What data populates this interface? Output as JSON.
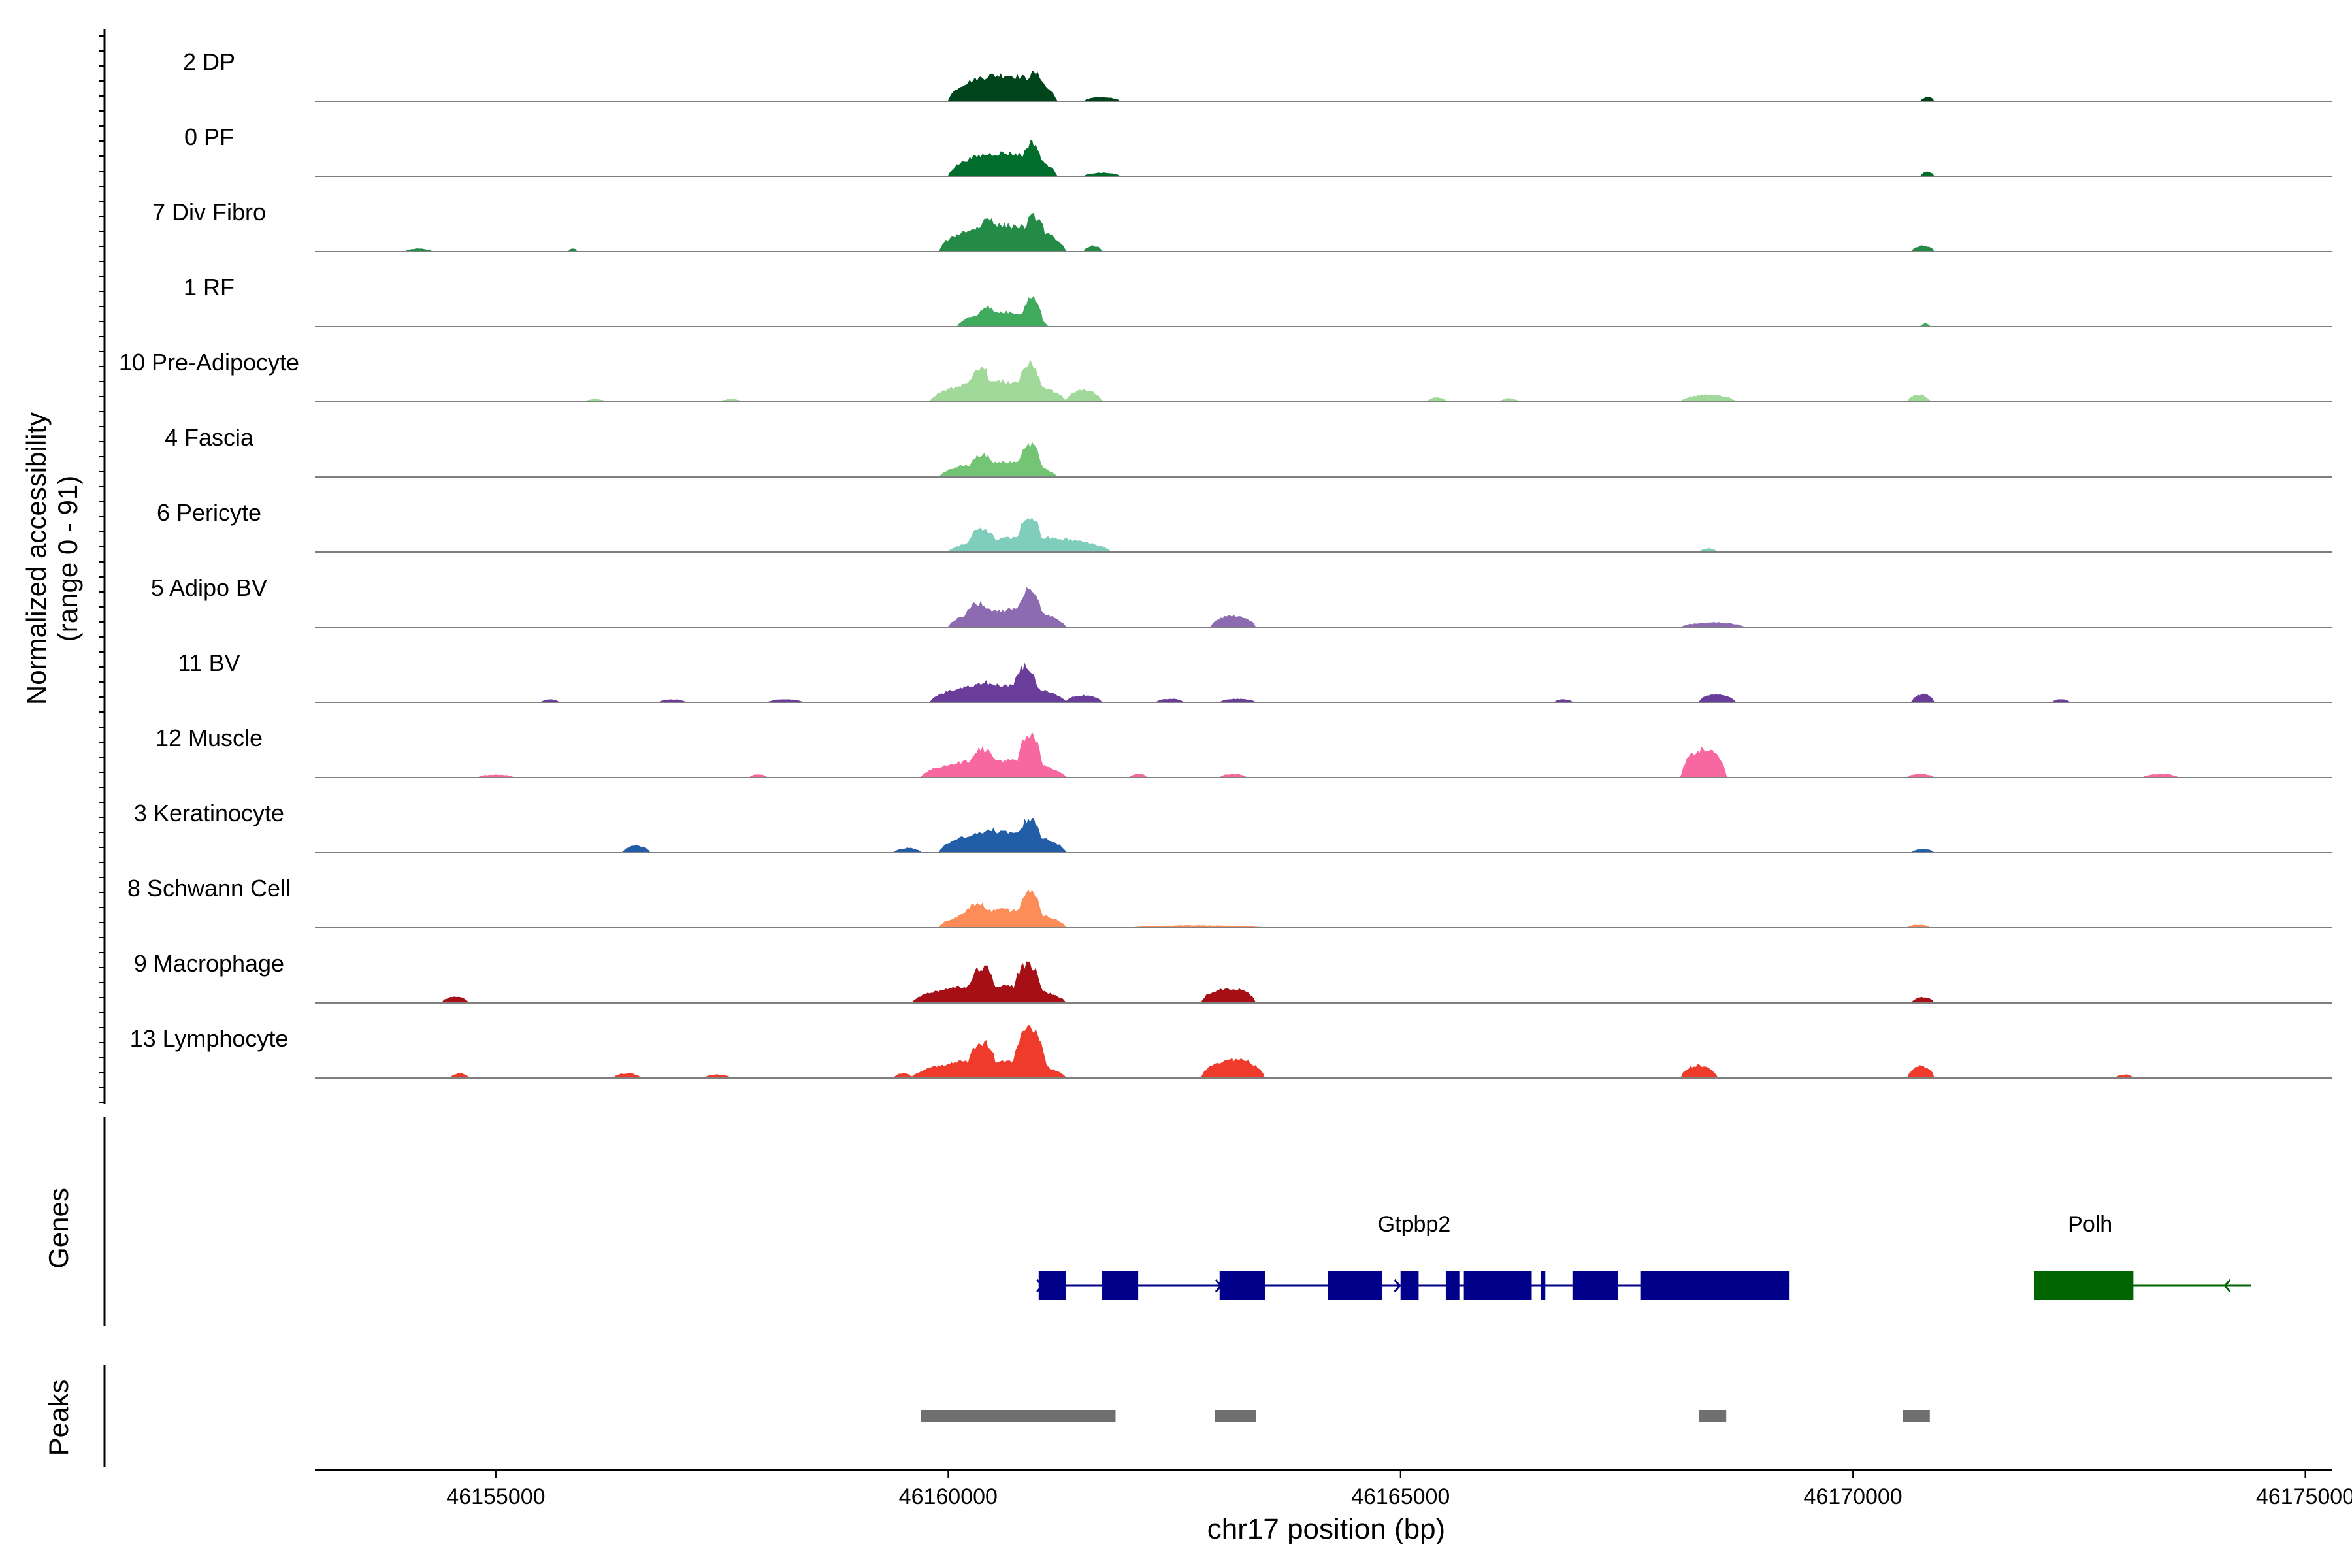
{
  "chart_data": {
    "type": "area",
    "track_type": "coverage",
    "ylabel": "Normalized accessibility",
    "ylabel_range": "(range 0 - 91)",
    "y_range": [
      0,
      91
    ],
    "xlabel": "chr17 position (bp)",
    "xlim": [
      46153000,
      46175300
    ],
    "x_ticks": [
      46155000,
      46160000,
      46165000,
      46170000,
      46175000
    ],
    "x_tick_labels": [
      "46155000",
      "46160000",
      "46165000",
      "46170000",
      "46175000"
    ],
    "genes_label": "Genes",
    "peaks_label": "Peaks",
    "tracks": [
      {
        "name": "2 DP",
        "color": "#00441b",
        "peaks": [
          [
            46160000,
            46161200,
            0.45
          ],
          [
            46160350,
            46160550,
            0.45
          ],
          [
            46160800,
            46161100,
            0.48
          ],
          [
            46161500,
            46161900,
            0.07
          ],
          [
            46170750,
            46170900,
            0.07
          ]
        ]
      },
      {
        "name": "0 PF",
        "color": "#006d2c",
        "peaks": [
          [
            46160000,
            46161200,
            0.4
          ],
          [
            46160300,
            46160550,
            0.38
          ],
          [
            46160800,
            46161050,
            0.58
          ],
          [
            46161500,
            46161900,
            0.06
          ],
          [
            46170750,
            46170900,
            0.08
          ]
        ]
      },
      {
        "name": "7 Div Fibro",
        "color": "#238b45",
        "peaks": [
          [
            46159900,
            46161300,
            0.45
          ],
          [
            46160300,
            46160600,
            0.58
          ],
          [
            46160800,
            46161100,
            0.6
          ],
          [
            46161500,
            46161700,
            0.1
          ],
          [
            46170650,
            46170900,
            0.1
          ],
          [
            46154000,
            46154300,
            0.05
          ],
          [
            46155800,
            46155900,
            0.05
          ]
        ]
      },
      {
        "name": "1 RF",
        "color": "#41ab5d",
        "peaks": [
          [
            46160100,
            46161100,
            0.25
          ],
          [
            46160300,
            46160550,
            0.35
          ],
          [
            46160800,
            46161050,
            0.5
          ],
          [
            46170750,
            46170850,
            0.06
          ]
        ]
      },
      {
        "name": "10 Pre-Adipocyte",
        "color": "#a1d99b",
        "peaks": [
          [
            46159800,
            46161300,
            0.35
          ],
          [
            46160200,
            46160500,
            0.6
          ],
          [
            46160750,
            46161050,
            0.65
          ],
          [
            46161300,
            46161700,
            0.2
          ],
          [
            46168100,
            46168700,
            0.12
          ],
          [
            46170600,
            46170850,
            0.12
          ],
          [
            46156000,
            46156200,
            0.05
          ],
          [
            46157500,
            46157700,
            0.05
          ],
          [
            46165300,
            46165500,
            0.08
          ],
          [
            46166100,
            46166300,
            0.06
          ]
        ]
      },
      {
        "name": "4 Fascia",
        "color": "#74c476",
        "peaks": [
          [
            46159900,
            46161200,
            0.25
          ],
          [
            46160200,
            46160550,
            0.38
          ],
          [
            46160750,
            46161050,
            0.55
          ]
        ]
      },
      {
        "name": "6 Pericyte",
        "color": "#7fcdbb",
        "peaks": [
          [
            46160000,
            46161800,
            0.25
          ],
          [
            46160200,
            46160550,
            0.4
          ],
          [
            46160750,
            46161050,
            0.6
          ],
          [
            46168300,
            46168500,
            0.06
          ]
        ]
      },
      {
        "name": "5 Adipo BV",
        "color": "#8c6bb1",
        "peaks": [
          [
            46160000,
            46161300,
            0.3
          ],
          [
            46160150,
            46160500,
            0.42
          ],
          [
            46160750,
            46161050,
            0.68
          ],
          [
            46162900,
            46163400,
            0.2
          ],
          [
            46168100,
            46168800,
            0.08
          ]
        ]
      },
      {
        "name": "11 BV",
        "color": "#6a3d9a",
        "peaks": [
          [
            46159800,
            46161300,
            0.3
          ],
          [
            46160250,
            46160550,
            0.35
          ],
          [
            46160700,
            46161000,
            0.62
          ],
          [
            46161300,
            46161700,
            0.12
          ],
          [
            46162300,
            46162600,
            0.06
          ],
          [
            46163000,
            46163400,
            0.06
          ],
          [
            46168300,
            46168700,
            0.14
          ],
          [
            46170650,
            46170900,
            0.14
          ],
          [
            46155500,
            46155700,
            0.05
          ],
          [
            46156800,
            46157100,
            0.05
          ],
          [
            46158000,
            46158400,
            0.05
          ],
          [
            46166700,
            46166900,
            0.05
          ],
          [
            46172200,
            46172400,
            0.05
          ]
        ]
      },
      {
        "name": "12 Muscle",
        "color": "#f768a1",
        "peaks": [
          [
            46159700,
            46161300,
            0.3
          ],
          [
            46160200,
            46160550,
            0.5
          ],
          [
            46160750,
            46161050,
            0.72
          ],
          [
            46168100,
            46168600,
            0.48
          ],
          [
            46154800,
            46155200,
            0.05
          ],
          [
            46157800,
            46158000,
            0.05
          ],
          [
            46162000,
            46162200,
            0.06
          ],
          [
            46163000,
            46163300,
            0.06
          ],
          [
            46170600,
            46170900,
            0.06
          ],
          [
            46173200,
            46173600,
            0.06
          ]
        ]
      },
      {
        "name": "3 Keratinocyte",
        "color": "#225ea8",
        "peaks": [
          [
            46159900,
            46161300,
            0.35
          ],
          [
            46160300,
            46160600,
            0.42
          ],
          [
            46160750,
            46161050,
            0.58
          ],
          [
            46156400,
            46156700,
            0.12
          ],
          [
            46159400,
            46159700,
            0.08
          ],
          [
            46170650,
            46170900,
            0.06
          ]
        ]
      },
      {
        "name": "8 Schwann Cell",
        "color": "#fc8d59",
        "peaks": [
          [
            46159900,
            46161300,
            0.3
          ],
          [
            46160150,
            46160500,
            0.42
          ],
          [
            46160750,
            46161050,
            0.6
          ],
          [
            46162000,
            46163500,
            0.04
          ],
          [
            46170600,
            46170850,
            0.05
          ]
        ]
      },
      {
        "name": "9 Macrophage",
        "color": "#a50f15",
        "peaks": [
          [
            46159600,
            46161300,
            0.3
          ],
          [
            46159900,
            46160100,
            0.25
          ],
          [
            46160200,
            46160550,
            0.62
          ],
          [
            46160700,
            46161050,
            0.65
          ],
          [
            46162800,
            46163400,
            0.25
          ],
          [
            46154400,
            46154700,
            0.1
          ],
          [
            46170650,
            46170900,
            0.1
          ]
        ]
      },
      {
        "name": "13 Lymphocyte",
        "color": "#ef3b2c",
        "peaks": [
          [
            46159600,
            46161300,
            0.3
          ],
          [
            46160200,
            46160550,
            0.62
          ],
          [
            46160700,
            46161100,
            0.82
          ],
          [
            46162800,
            46163500,
            0.32
          ],
          [
            46168100,
            46168500,
            0.22
          ],
          [
            46170600,
            46170900,
            0.2
          ],
          [
            46154500,
            46154700,
            0.08
          ],
          [
            46156300,
            46156600,
            0.08
          ],
          [
            46157300,
            46157600,
            0.06
          ],
          [
            46159400,
            46159600,
            0.08
          ],
          [
            46172900,
            46173100,
            0.06
          ]
        ]
      }
    ],
    "genes": [
      {
        "name": "Gtpbp2",
        "strand": "+",
        "color": "#00008b",
        "start": 46161000,
        "end": 46169300,
        "exons": [
          [
            46161000,
            46161300
          ],
          [
            46161700,
            46162100
          ],
          [
            46163000,
            46163500
          ],
          [
            46164200,
            46164800
          ],
          [
            46165000,
            46165200
          ],
          [
            46165500,
            46165650
          ],
          [
            46165700,
            46166450
          ],
          [
            46166550,
            46166600
          ],
          [
            46166900,
            46167400
          ],
          [
            46167650,
            46169300
          ]
        ]
      },
      {
        "name": "Polh",
        "strand": "-",
        "color": "#006400",
        "start": 46172000,
        "end": 46174400,
        "exons": [
          [
            46172000,
            46173100
          ]
        ]
      }
    ],
    "peaks": [
      [
        46159700,
        46161850
      ],
      [
        46162950,
        46163400
      ],
      [
        46168300,
        46168600
      ],
      [
        46170550,
        46170850
      ]
    ]
  }
}
